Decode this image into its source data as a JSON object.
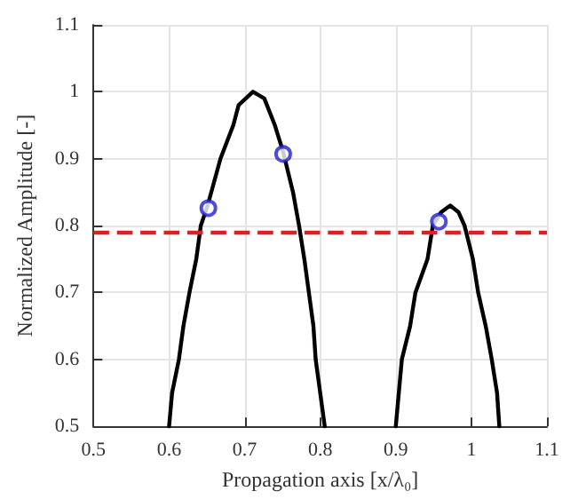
{
  "chart_data": {
    "type": "line",
    "xlabel": "Propagation axis [x/λ₀]",
    "ylabel": "Normalized Amplitude [-]",
    "xlim": [
      0.5,
      1.1
    ],
    "xticks": [
      0.5,
      0.6,
      0.7,
      0.8,
      0.9,
      1,
      1.1
    ],
    "ylim": [
      0.5,
      1.1
    ],
    "yticks": [
      0.5,
      0.6,
      0.7,
      0.8,
      0.9,
      1,
      1.1
    ],
    "grid": true,
    "line_style": "solid",
    "series": [
      {
        "color": "#000000",
        "marker": "none",
        "x": [
          0.6,
          0.604,
          0.613,
          0.619,
          0.627,
          0.636,
          0.642,
          0.651,
          0.668,
          0.685,
          0.692,
          0.711,
          0.726,
          0.74,
          0.751,
          0.764,
          0.772,
          0.779,
          0.785,
          0.791,
          0.794,
          0.8,
          0.806
        ],
        "values": [
          0.5,
          0.55,
          0.6,
          0.65,
          0.7,
          0.75,
          0.8,
          0.83,
          0.9,
          0.95,
          0.98,
          1.0,
          0.99,
          0.95,
          0.91,
          0.85,
          0.8,
          0.75,
          0.7,
          0.65,
          0.6,
          0.55,
          0.5
        ]
      },
      {
        "color": "#000000",
        "marker": "none",
        "x": [
          0.9,
          0.904,
          0.908,
          0.919,
          0.926,
          0.942,
          0.949,
          0.96,
          0.972,
          0.983,
          0.991,
          1.002,
          1.009,
          1.019,
          1.027,
          1.034,
          1.037
        ],
        "values": [
          0.5,
          0.55,
          0.6,
          0.65,
          0.7,
          0.75,
          0.8,
          0.82,
          0.83,
          0.82,
          0.8,
          0.75,
          0.7,
          0.65,
          0.6,
          0.55,
          0.5
        ]
      },
      {
        "type": "scatter",
        "color": "#1f1fd0",
        "marker": "circle",
        "x": [
          0.652,
          0.751,
          0.957
        ],
        "values": [
          0.826,
          0.907,
          0.806
        ]
      }
    ],
    "ref_lines": [
      {
        "axis": "y",
        "value": 0.79,
        "color": "#e02020",
        "line_style": "dashed"
      }
    ]
  }
}
